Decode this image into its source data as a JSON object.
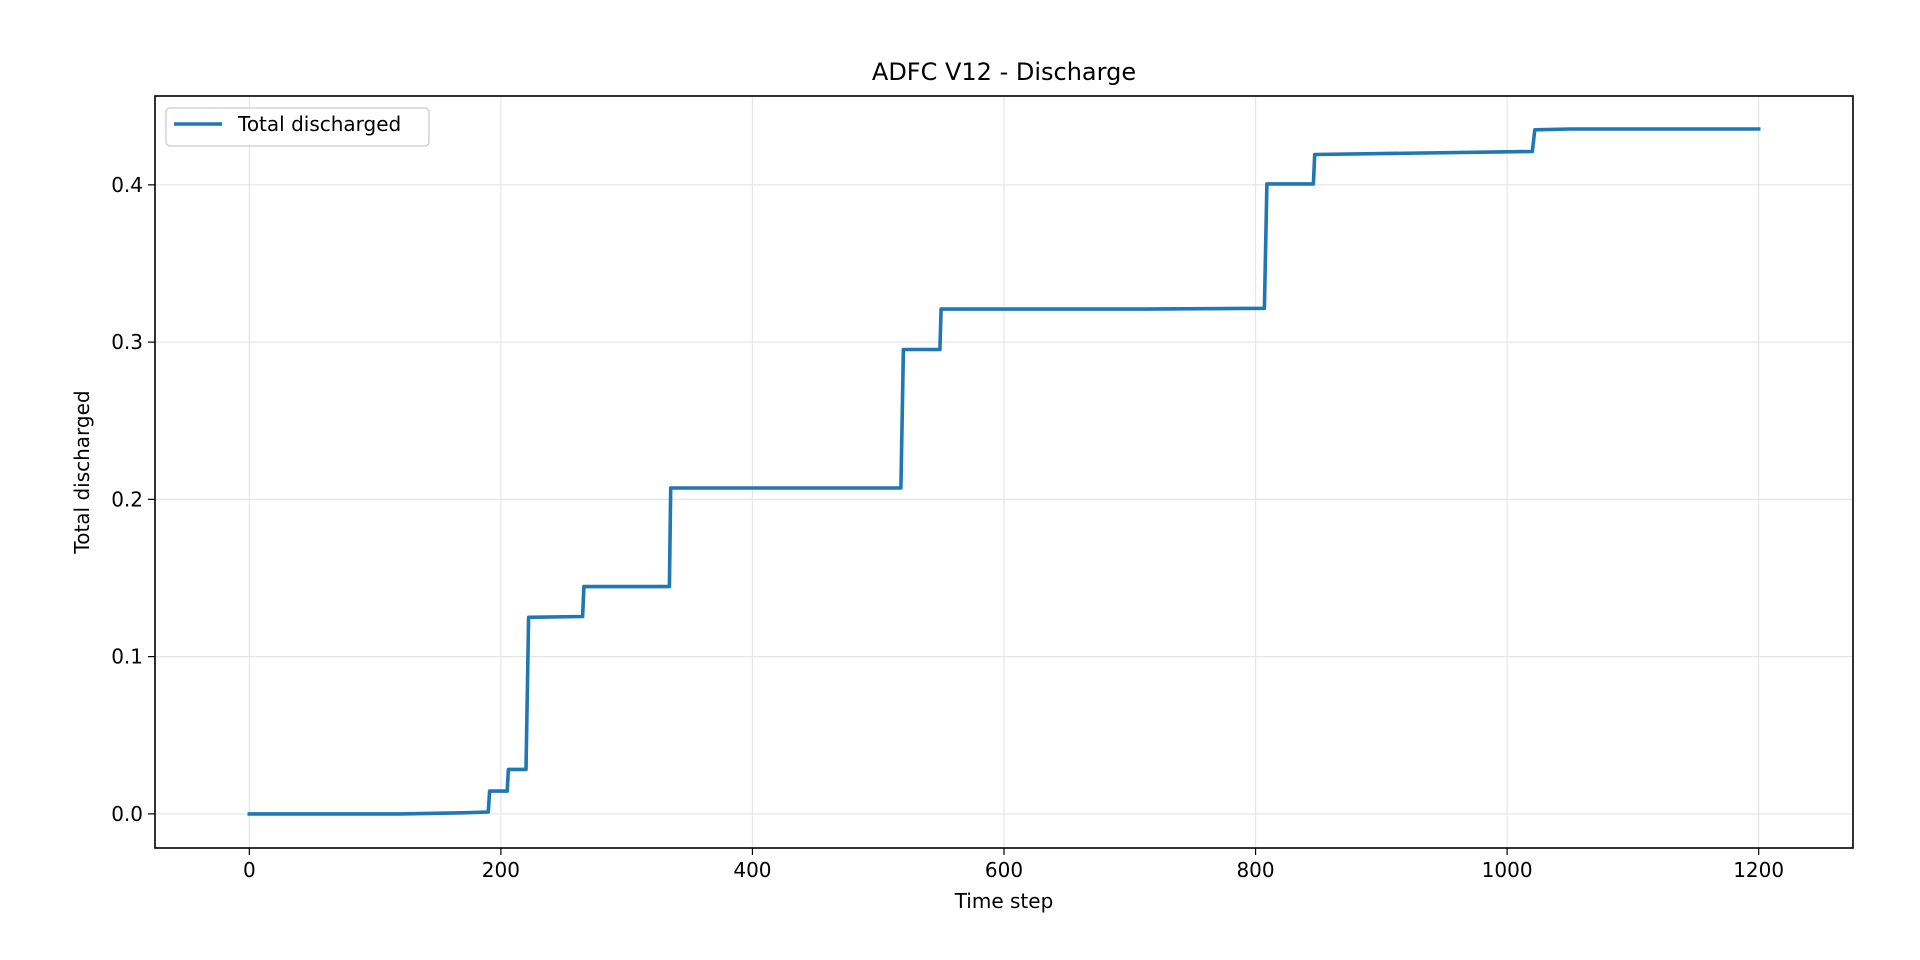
{
  "chart_data": {
    "type": "line",
    "title": "ADFC V12 - Discharge",
    "xlabel": "Time step",
    "ylabel": "Total discharged",
    "xlim": [
      -75,
      1275
    ],
    "ylim": [
      -0.0217,
      0.4565
    ],
    "xticks": [
      0,
      200,
      400,
      600,
      800,
      1000,
      1200
    ],
    "yticks": [
      0.0,
      0.1,
      0.2,
      0.3,
      0.4
    ],
    "xtick_labels": [
      "0",
      "200",
      "400",
      "600",
      "800",
      "1000",
      "1200"
    ],
    "ytick_labels": [
      "0.0",
      "0.1",
      "0.2",
      "0.3",
      "0.4"
    ],
    "grid": true,
    "legend_position": "upper-left",
    "series": [
      {
        "name": "Total discharged",
        "color": "#1f77b4",
        "x": [
          0,
          120,
          170,
          190,
          191,
          205,
          206,
          220,
          222,
          265,
          266,
          334,
          335,
          518,
          520,
          549,
          550,
          700,
          807,
          809,
          846,
          847,
          1020,
          1022,
          1050,
          1200
        ],
        "y": [
          0.0,
          0.0,
          0.0007,
          0.0012,
          0.0145,
          0.0145,
          0.0283,
          0.0283,
          0.125,
          0.1255,
          0.1445,
          0.1445,
          0.2072,
          0.2072,
          0.2953,
          0.2953,
          0.321,
          0.321,
          0.3215,
          0.4006,
          0.4006,
          0.4193,
          0.4212,
          0.435,
          0.4355,
          0.4355
        ]
      }
    ]
  }
}
